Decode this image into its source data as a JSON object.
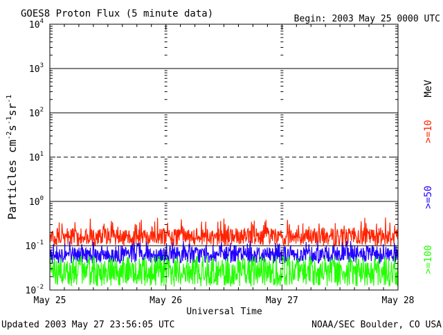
{
  "chart_data": {
    "type": "line",
    "title": "GOES8 Proton Flux (5 minute data)",
    "begin_text": "Begin: 2003 May 25 0000 UTC",
    "xlabel": "Universal Time",
    "ylabel": "Particles cm⁻²s⁻¹sr⁻¹",
    "ylabel_parts": {
      "base": "Particles cm",
      "e1": "-2",
      "s": "s",
      "e2": "-1",
      "sr": "sr",
      "e3": "-1"
    },
    "x_tick_labels": [
      "May 25",
      "May 26",
      "May 27",
      "May 28"
    ],
    "xlim_days": [
      0,
      3
    ],
    "y_scale": "log",
    "ylim": [
      0.01,
      10000
    ],
    "y_tick_labels": [
      {
        "base": "10",
        "exp": "4"
      },
      {
        "base": "10",
        "exp": "3"
      },
      {
        "base": "10",
        "exp": "2"
      },
      {
        "base": "10",
        "exp": "1"
      },
      {
        "base": "10",
        "exp": "0"
      },
      {
        "base": "10",
        "exp": "-1"
      },
      {
        "base": "10",
        "exp": "-2"
      }
    ],
    "threshold_lines": [
      {
        "value": 1000,
        "style": "solid"
      },
      {
        "value": 100,
        "style": "solid"
      },
      {
        "value": 10,
        "style": "dashed"
      },
      {
        "value": 1,
        "style": "solid"
      }
    ],
    "unit_label": "MeV",
    "series": [
      {
        "name": ">=10",
        "color": "#ff2200",
        "typical_range": [
          0.1,
          0.25
        ],
        "peak": 0.45
      },
      {
        "name": ">=50",
        "color": "#2200ff",
        "typical_range": [
          0.04,
          0.1
        ],
        "peak": 0.13
      },
      {
        "name": ">=100",
        "color": "#22ff00",
        "typical_range": [
          0.012,
          0.05
        ],
        "peak": 0.06
      }
    ]
  },
  "footer": {
    "updated": "Updated 2003 May 27 23:56:05 UTC",
    "source": "NOAA/SEC Boulder, CO USA"
  },
  "colors": {
    "axis": "#000000",
    "background": "#ffffff"
  }
}
